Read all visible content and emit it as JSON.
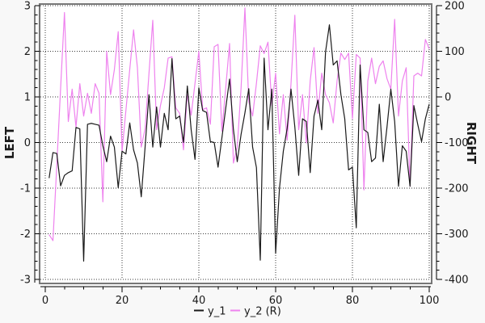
{
  "window": {
    "background": "#f8f8f8",
    "plot_background": "#ffffff",
    "frame_color": "#777777",
    "grid_color": "#3a3a3a"
  },
  "chart_data": {
    "type": "line",
    "title": "",
    "x_range": [
      1,
      100
    ],
    "x_step": 1,
    "series": [
      {
        "name": "y_1",
        "axis": "left",
        "color": "#1a1a1a",
        "values": [
          -0.78,
          -0.22,
          -0.24,
          -0.95,
          -0.72,
          -0.66,
          -0.62,
          0.33,
          0.3,
          -2.6,
          0.4,
          0.42,
          0.4,
          0.38,
          -0.07,
          -0.42,
          0.14,
          -0.1,
          -0.99,
          -0.19,
          -0.25,
          0.43,
          -0.16,
          -0.45,
          -1.19,
          -0.1,
          1.05,
          -0.1,
          0.78,
          -0.1,
          0.64,
          0.28,
          1.84,
          0.52,
          0.58,
          0.0,
          1.24,
          0.28,
          -0.37,
          1.2,
          0.7,
          0.66,
          0.02,
          0.0,
          -0.54,
          0.1,
          0.75,
          1.39,
          0.29,
          -0.42,
          0.18,
          0.65,
          1.18,
          -0.1,
          -0.55,
          -2.58,
          1.85,
          0.28,
          1.17,
          -2.43,
          -1.0,
          -0.19,
          0.31,
          1.17,
          0.34,
          -0.72,
          0.52,
          0.46,
          -0.66,
          0.58,
          0.93,
          0.28,
          1.99,
          2.58,
          1.7,
          1.79,
          1.05,
          0.52,
          -0.6,
          -0.54,
          -1.87,
          1.7,
          0.28,
          0.22,
          -0.42,
          -0.34,
          0.84,
          -0.42,
          0.34,
          1.17,
          0.46,
          -0.96,
          -0.07,
          -0.19,
          -0.96,
          0.81,
          0.4,
          0.02,
          0.52,
          0.84
        ]
      },
      {
        "name": "y_2 (R)",
        "axis": "right",
        "color": "#ee82ee",
        "values": [
          -302,
          -315,
          -150,
          20,
          185,
          -54,
          17,
          -66,
          29,
          -42,
          8,
          -36,
          29,
          8,
          -230,
          100,
          5,
          60,
          143,
          -119,
          -30,
          60,
          147,
          64,
          -110,
          -70,
          50,
          168,
          -72,
          -19,
          20,
          85,
          88,
          -24,
          -36,
          -116,
          5,
          -40,
          30,
          100,
          -28,
          -24,
          -60,
          110,
          115,
          -75,
          20,
          117,
          -145,
          -110,
          20,
          195,
          -10,
          -42,
          30,
          112,
          95,
          120,
          -19,
          52,
          -81,
          5,
          -95,
          29,
          179,
          -72,
          5,
          -101,
          35,
          108,
          -36,
          52,
          5,
          -13,
          -57,
          35,
          96,
          82,
          96,
          -48,
          93,
          85,
          -204,
          35,
          85,
          29,
          67,
          79,
          40,
          17,
          170,
          -42,
          35,
          64,
          -196,
          46,
          52,
          46,
          126,
          105
        ]
      }
    ],
    "axes": {
      "left": {
        "label": "LEFT",
        "min": -3,
        "max": 3,
        "major_ticks": [
          3,
          2,
          1,
          0,
          -1,
          -2,
          -3
        ],
        "minor_step": 0.2
      },
      "right": {
        "label": "RIGHT",
        "min": -400,
        "max": 200,
        "major_ticks": [
          200,
          100,
          0,
          -100,
          -200,
          -300,
          -400
        ],
        "minor_step": 20
      },
      "x": {
        "label": "",
        "min": 0,
        "max": 100,
        "major_ticks": [
          0,
          20,
          40,
          60,
          80,
          100
        ],
        "minor_step": 5
      }
    },
    "grid": {
      "shown": true,
      "style": "dotted"
    },
    "legend": {
      "position": "bottom-center",
      "entries": [
        {
          "label": "y_1",
          "color": "#1a1a1a"
        },
        {
          "label": "y_2 (R)",
          "color": "#ee82ee"
        }
      ]
    }
  }
}
